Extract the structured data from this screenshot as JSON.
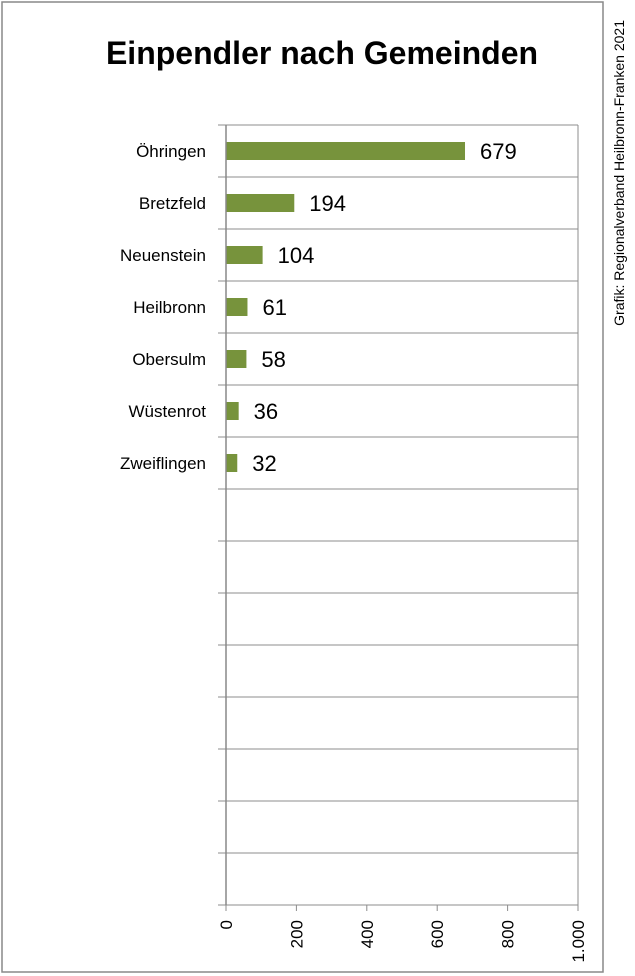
{
  "chart_data": {
    "type": "bar",
    "orientation": "horizontal",
    "title": "Einpendler nach Gemeinden",
    "categories": [
      "Öhringen",
      "Bretzfeld",
      "Neuenstein",
      "Heilbronn",
      "Obersulm",
      "Wüstenrot",
      "Zweiflingen"
    ],
    "values": [
      679,
      194,
      104,
      61,
      58,
      36,
      32
    ],
    "value_labels": [
      "679",
      "194",
      "104",
      "61",
      "58",
      "36",
      "32"
    ],
    "xlim": [
      0,
      1000
    ],
    "ticks": [
      0,
      200,
      400,
      600,
      800,
      1000
    ],
    "tick_labels": [
      "0",
      "200",
      "400",
      "600",
      "800",
      "1.000"
    ],
    "grid": true,
    "bar_color": "#77933c",
    "source": "Grafik: Regionalverband Heilbronn-Franken 2021"
  }
}
